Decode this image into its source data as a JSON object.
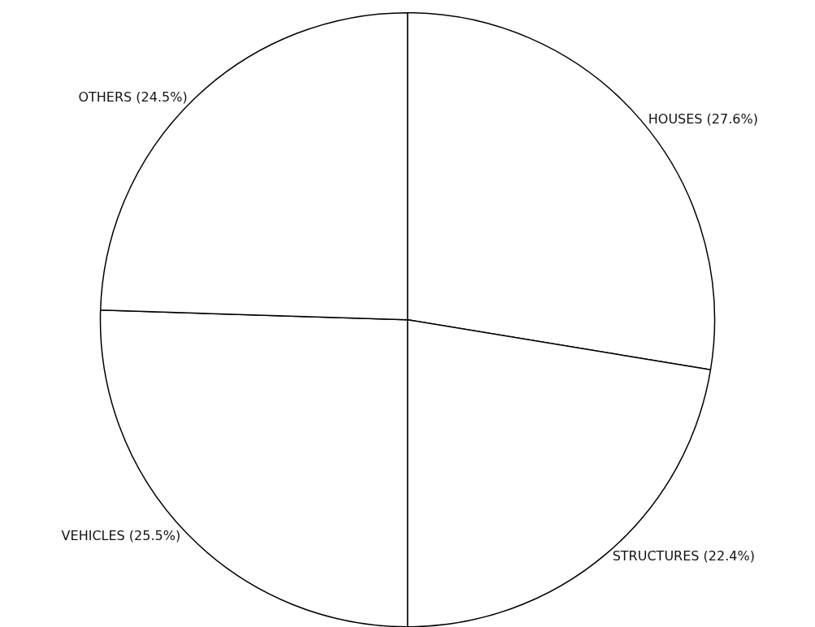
{
  "chart_data": {
    "type": "pie",
    "categories": [
      "HOUSES",
      "STRUCTURES",
      "VEHICLES",
      "OTHERS"
    ],
    "values": [
      27.6,
      22.4,
      25.5,
      24.5
    ],
    "value_labels": [
      "(27.6%)",
      "(22.4%)",
      "(25.5%)",
      "(24.5%)"
    ],
    "colors": [
      "#ffffff",
      "#ffffff",
      "#ffffff",
      "#ffffff"
    ],
    "legend": false
  }
}
